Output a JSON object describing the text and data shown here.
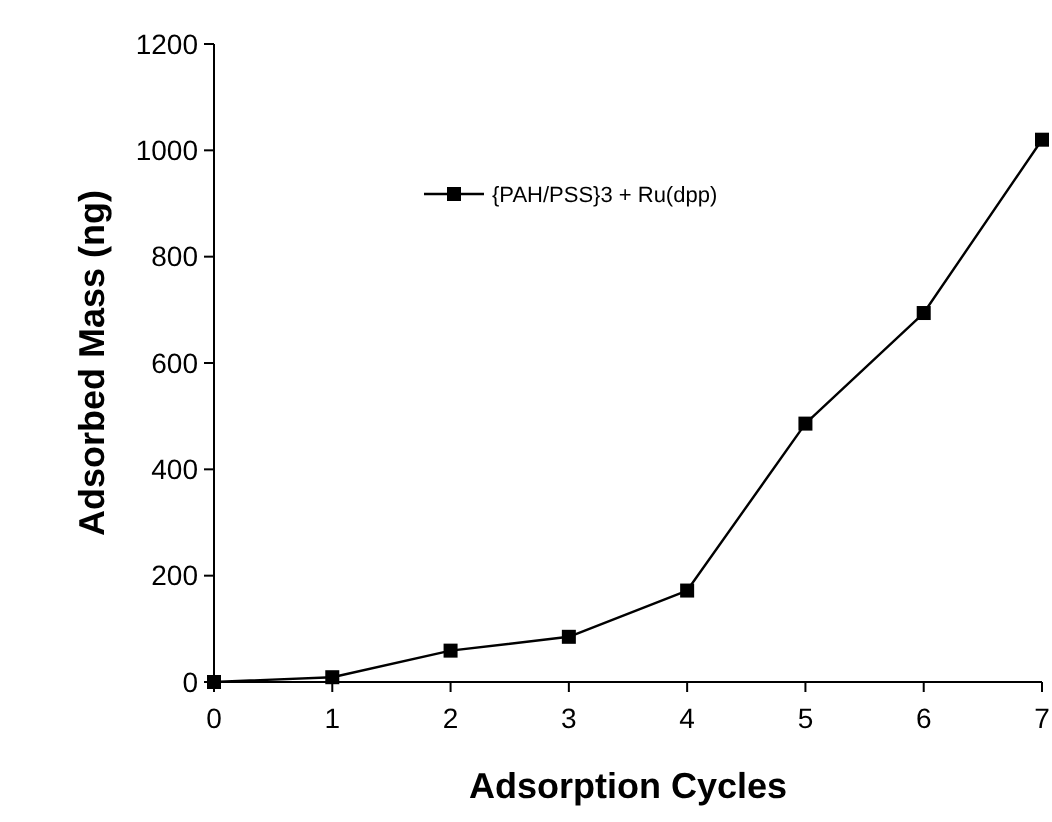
{
  "chart_data": {
    "type": "line",
    "xlabel": "Adsorption Cycles",
    "ylabel": "Adsorbed Mass (ng)",
    "x": [
      0,
      1,
      2,
      3,
      4,
      5,
      6,
      7
    ],
    "series": [
      {
        "name": "{PAH/PSS}3 + Ru(dpp)",
        "color": "#000000",
        "values": [
          0,
          9,
          59,
          85,
          172,
          486,
          694,
          1020
        ]
      }
    ],
    "xlim": [
      0,
      7
    ],
    "xticks": [
      0,
      1,
      2,
      3,
      4,
      5,
      6,
      7
    ],
    "ylim": [
      0,
      1200
    ],
    "yticks": [
      0,
      200,
      400,
      600,
      800,
      1000,
      1200
    ],
    "marker": "square",
    "legend": "top left",
    "grid": false
  }
}
